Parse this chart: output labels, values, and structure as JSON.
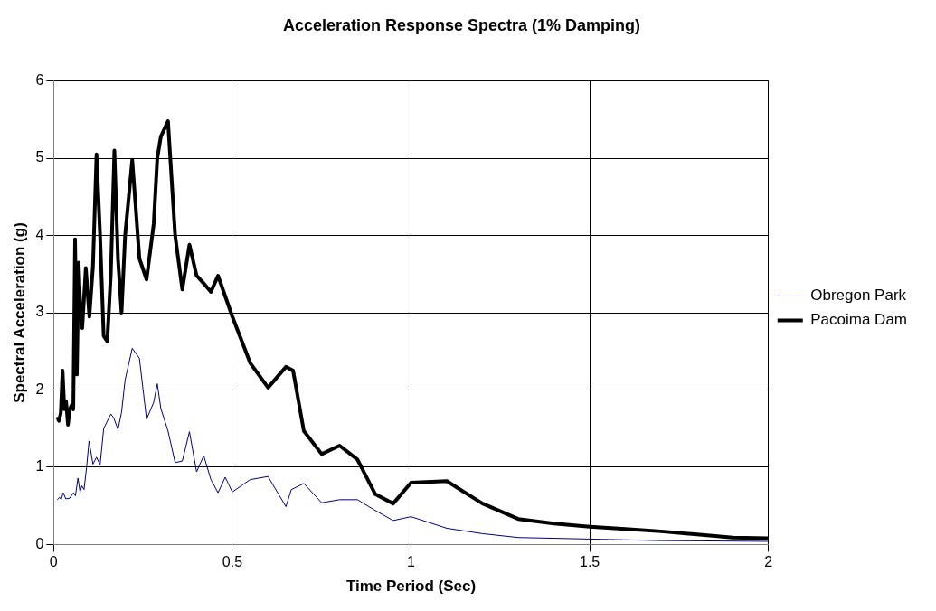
{
  "chart_data": {
    "type": "line",
    "title": "Acceleration Response Spectra (1% Damping)",
    "xlabel": "Time Period (Sec)",
    "ylabel": "Spectral Acceleration (g)",
    "xlim": [
      0,
      2
    ],
    "xticks": [
      0,
      0.5,
      1,
      1.5,
      2
    ],
    "ylim": [
      0,
      6
    ],
    "yticks": [
      0,
      1,
      2,
      3,
      4,
      5,
      6
    ],
    "grid": true,
    "legend": "right",
    "marker": "none",
    "line_style": "solid",
    "series": [
      {
        "name": "Obregon Park",
        "color": "#000080",
        "x": [
          0.01,
          0.017,
          0.021,
          0.027,
          0.034,
          0.045,
          0.056,
          0.061,
          0.068,
          0.074,
          0.079,
          0.085,
          0.092,
          0.099,
          0.11,
          0.12,
          0.13,
          0.14,
          0.16,
          0.168,
          0.18,
          0.19,
          0.2,
          0.22,
          0.24,
          0.26,
          0.28,
          0.29,
          0.3,
          0.32,
          0.34,
          0.36,
          0.38,
          0.4,
          0.42,
          0.44,
          0.46,
          0.48,
          0.5,
          0.55,
          0.6,
          0.65,
          0.665,
          0.7,
          0.75,
          0.8,
          0.85,
          0.9,
          0.95,
          1.0,
          1.1,
          1.2,
          1.3,
          1.5,
          1.7,
          2.0
        ],
        "values": [
          0.58,
          0.61,
          0.58,
          0.67,
          0.59,
          0.6,
          0.67,
          0.63,
          0.86,
          0.68,
          0.76,
          0.71,
          0.99,
          1.34,
          1.04,
          1.13,
          1.03,
          1.5,
          1.69,
          1.64,
          1.49,
          1.71,
          2.13,
          2.54,
          2.41,
          1.62,
          1.84,
          2.08,
          1.76,
          1.47,
          1.06,
          1.08,
          1.46,
          0.94,
          1.15,
          0.84,
          0.67,
          0.87,
          0.68,
          0.84,
          0.88,
          0.49,
          0.71,
          0.79,
          0.54,
          0.58,
          0.58,
          0.44,
          0.31,
          0.36,
          0.21,
          0.14,
          0.09,
          0.07,
          0.05,
          0.04
        ]
      },
      {
        "name": "Pacoima Dam",
        "color": "#000000",
        "x": [
          0.01,
          0.015,
          0.02,
          0.025,
          0.03,
          0.035,
          0.04,
          0.045,
          0.05,
          0.055,
          0.06,
          0.065,
          0.07,
          0.075,
          0.08,
          0.09,
          0.1,
          0.11,
          0.12,
          0.13,
          0.14,
          0.15,
          0.16,
          0.17,
          0.18,
          0.19,
          0.2,
          0.22,
          0.24,
          0.26,
          0.28,
          0.29,
          0.3,
          0.32,
          0.34,
          0.36,
          0.38,
          0.4,
          0.42,
          0.44,
          0.46,
          0.5,
          0.55,
          0.6,
          0.65,
          0.67,
          0.7,
          0.75,
          0.8,
          0.85,
          0.9,
          0.95,
          1.0,
          1.1,
          1.2,
          1.3,
          1.4,
          1.5,
          1.6,
          1.7,
          1.8,
          1.9,
          2.0
        ],
        "values": [
          1.65,
          1.6,
          1.7,
          2.25,
          1.75,
          1.85,
          1.55,
          1.75,
          1.8,
          1.75,
          3.95,
          2.2,
          3.65,
          3.0,
          2.8,
          3.58,
          2.95,
          3.6,
          5.05,
          4.0,
          2.7,
          2.63,
          3.5,
          5.1,
          3.7,
          3.0,
          4.0,
          4.98,
          3.7,
          3.43,
          4.15,
          5.0,
          5.28,
          5.48,
          4.0,
          3.3,
          3.88,
          3.48,
          3.38,
          3.27,
          3.48,
          2.95,
          2.35,
          2.03,
          2.3,
          2.25,
          1.47,
          1.17,
          1.28,
          1.1,
          0.65,
          0.53,
          0.8,
          0.82,
          0.53,
          0.33,
          0.27,
          0.23,
          0.2,
          0.17,
          0.13,
          0.09,
          0.08
        ]
      }
    ]
  }
}
